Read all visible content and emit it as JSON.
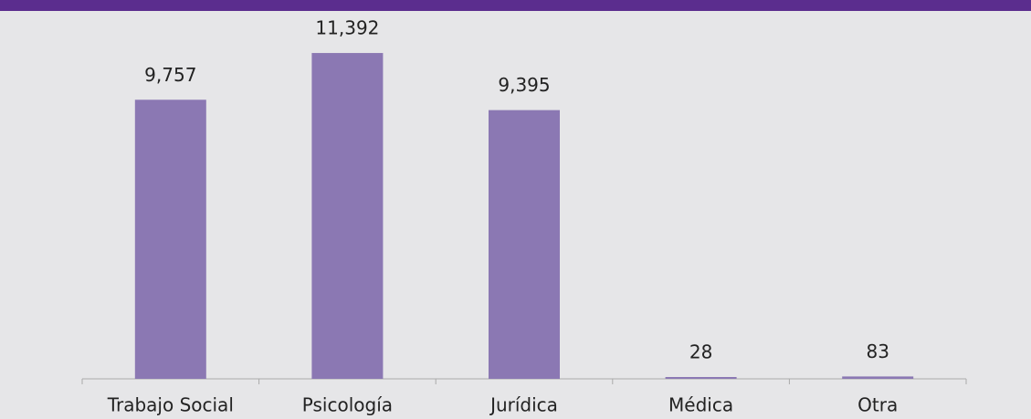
{
  "chart_data": {
    "type": "bar",
    "categories": [
      "Trabajo Social",
      "Psicología",
      "Jurídica",
      "Médica",
      "Otra"
    ],
    "values": [
      9757,
      11392,
      9395,
      28,
      83
    ],
    "value_labels": [
      "9,757",
      "11,392",
      "9,395",
      "28",
      "83"
    ],
    "color": "#8b78b3",
    "ylim": [
      0,
      12000
    ]
  }
}
